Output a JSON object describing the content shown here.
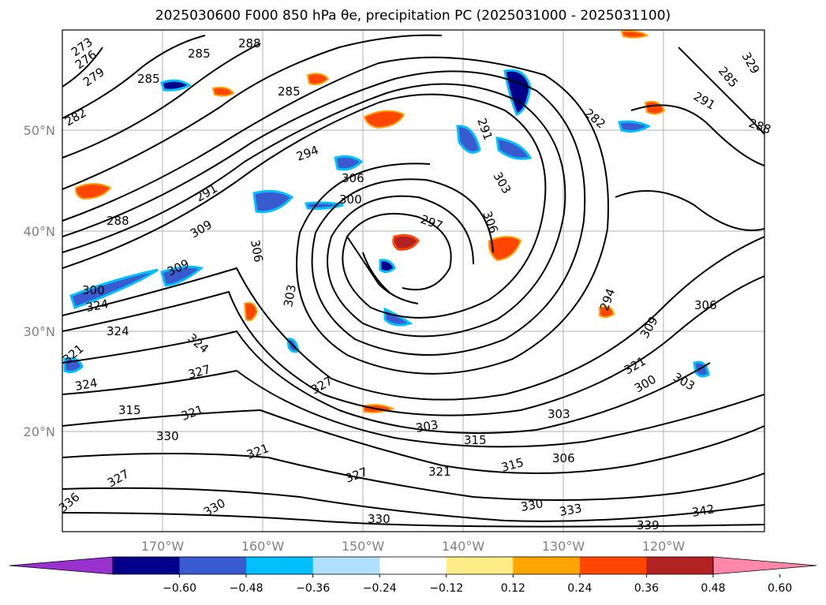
{
  "title": "2025030600 F000 850 hPa θe, precipitation PC (2025031000 - 2025031100)",
  "map": {
    "lat_ticks": [
      "50°N",
      "40°N",
      "30°N",
      "20°N"
    ],
    "lon_ticks": [
      "170°W",
      "160°W",
      "150°W",
      "140°W",
      "130°W",
      "120°W"
    ],
    "grid": true,
    "contour_labels": [
      "273",
      "276",
      "279",
      "285",
      "288",
      "285",
      "285",
      "282",
      "291",
      "294",
      "306",
      "300",
      "297",
      "291",
      "303",
      "306",
      "285",
      "291",
      "288",
      "309",
      "306",
      "309",
      "300",
      "303",
      "324",
      "321",
      "324",
      "327",
      "327",
      "324",
      "315",
      "330",
      "303",
      "315",
      "321",
      "327",
      "321",
      "330",
      "306",
      "315",
      "303",
      "300",
      "303",
      "294",
      "309",
      "306",
      "321",
      "330",
      "333",
      "339",
      "342",
      "330",
      "336",
      "282",
      "324",
      "321",
      "327",
      "329",
      "288"
    ]
  },
  "colorbar": {
    "ticks": [
      "−0.60",
      "−0.48",
      "−0.36",
      "−0.24",
      "−0.12",
      "0.12",
      "0.24",
      "0.36",
      "0.48",
      "0.60"
    ],
    "colors": [
      "#9932CC",
      "#00008B",
      "#3A5BD0",
      "#00BFFF",
      "#B0E0FF",
      "#FFFFFF",
      "#FFEE88",
      "#FFA500",
      "#FF4500",
      "#B22222",
      "#FF88AA"
    ]
  }
}
